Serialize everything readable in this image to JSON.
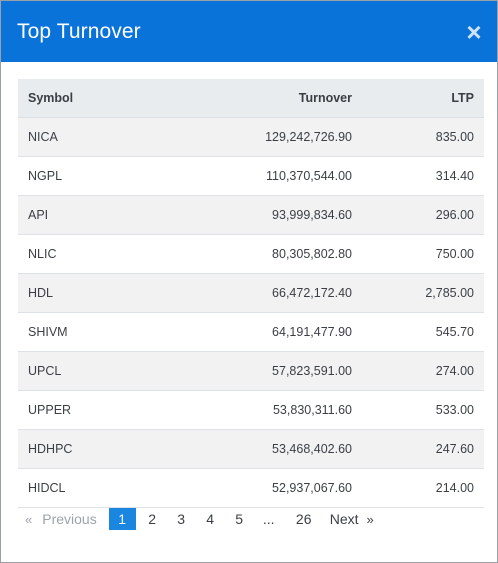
{
  "modal": {
    "title": "Top Turnover",
    "close_icon": "×"
  },
  "table": {
    "headers": {
      "symbol": "Symbol",
      "turnover": "Turnover",
      "ltp": "LTP"
    },
    "rows": [
      {
        "symbol": "NICA",
        "turnover": "129,242,726.90",
        "ltp": "835.00"
      },
      {
        "symbol": "NGPL",
        "turnover": "110,370,544.00",
        "ltp": "314.40"
      },
      {
        "symbol": "API",
        "turnover": "93,999,834.60",
        "ltp": "296.00"
      },
      {
        "symbol": "NLIC",
        "turnover": "80,305,802.80",
        "ltp": "750.00"
      },
      {
        "symbol": "HDL",
        "turnover": "66,472,172.40",
        "ltp": "2,785.00"
      },
      {
        "symbol": "SHIVM",
        "turnover": "64,191,477.90",
        "ltp": "545.70"
      },
      {
        "symbol": "UPCL",
        "turnover": "57,823,591.00",
        "ltp": "274.00"
      },
      {
        "symbol": "UPPER",
        "turnover": "53,830,311.60",
        "ltp": "533.00"
      },
      {
        "symbol": "HDHPC",
        "turnover": "53,468,402.60",
        "ltp": "247.60"
      },
      {
        "symbol": "HIDCL",
        "turnover": "52,937,067.60",
        "ltp": "214.00"
      }
    ]
  },
  "pagination": {
    "prev_arrow": "«",
    "previous": "Previous",
    "pages": [
      "1",
      "2",
      "3",
      "4",
      "5"
    ],
    "ellipsis": "...",
    "last_page": "26",
    "next": "Next",
    "next_arrow": "»",
    "active_page": "1"
  },
  "colors": {
    "header_bg": "#0a73d9",
    "active_page_bg": "#1a86e0",
    "stripe_bg": "#f2f2f2",
    "table_head_bg": "#e9ecef"
  }
}
